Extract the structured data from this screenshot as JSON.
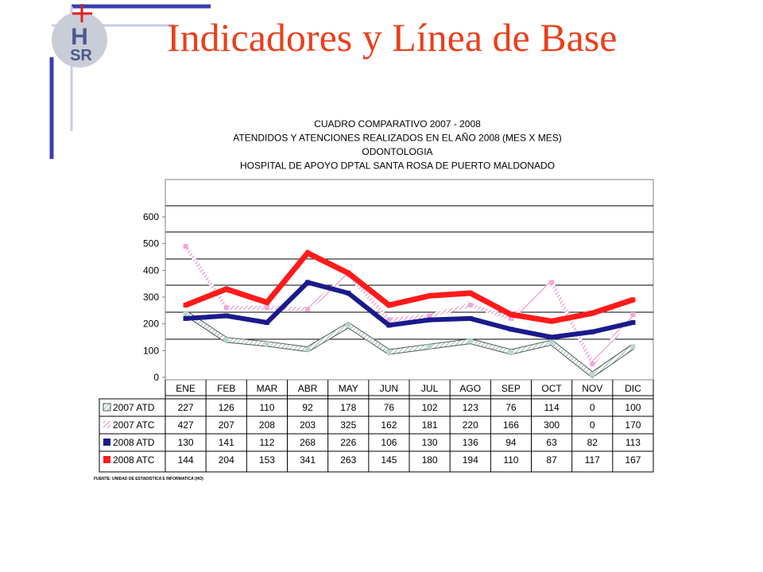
{
  "slide": {
    "title": "Indicadores y Línea de Base",
    "logo_text_top": "H",
    "logo_text_bottom": "SR"
  },
  "colors": {
    "title": "#e8401c",
    "accent_bar": "#3a3fb0",
    "accent_light": "#c8cbe8",
    "logo_cross": "#e02020",
    "atd_2007": "#b7d7d0",
    "atc_2007": "#f0a8d8",
    "atd_2008": "#1a1a8c",
    "atc_2008": "#ff1a1a"
  },
  "chart_data": {
    "type": "line",
    "title_lines": [
      "CUADRO COMPARATIVO 2007 - 2008",
      "ATENDIDOS Y ATENCIONES REALIZADOS EN EL AÑO 2008 (MES X MES)",
      "ODONTOLOGIA",
      "HOSPITAL DE APOYO DPTAL SANTA ROSA DE PUERTO MALDONADO"
    ],
    "categories": [
      "ENE",
      "FEB",
      "MAR",
      "ABR",
      "MAY",
      "JUN",
      "JUL",
      "AGO",
      "SEP",
      "OCT",
      "NOV",
      "DIC"
    ],
    "yticks": [
      0,
      100,
      200,
      300,
      400,
      500,
      600
    ],
    "ylim": [
      0,
      600
    ],
    "series": [
      {
        "name": "2007 ATD",
        "values": [
          227,
          126,
          110,
          92,
          178,
          76,
          102,
          123,
          76,
          114,
          0,
          100
        ],
        "color": "#b7d7d0",
        "style": "hatched-thin"
      },
      {
        "name": "2007 ATC",
        "values": [
          427,
          207,
          208,
          203,
          325,
          162,
          181,
          220,
          166,
          300,
          0,
          170
        ],
        "color": "#f0a8d8",
        "style": "hatched"
      },
      {
        "name": "2008 ATD",
        "values": [
          130,
          141,
          112,
          268,
          226,
          106,
          130,
          136,
          94,
          63,
          82,
          113
        ],
        "color": "#1a1a8c",
        "style": "solid"
      },
      {
        "name": "2008 ATC",
        "values": [
          144,
          204,
          153,
          341,
          263,
          145,
          180,
          194,
          110,
          87,
          117,
          167
        ],
        "color": "#ff1a1a",
        "style": "solid"
      }
    ],
    "plotted_y": [
      [
        240,
        140,
        125,
        105,
        195,
        95,
        115,
        135,
        95,
        130,
        10,
        115
      ],
      [
        490,
        260,
        260,
        255,
        385,
        215,
        230,
        270,
        220,
        355,
        50,
        235
      ],
      [
        220,
        230,
        205,
        355,
        315,
        195,
        215,
        220,
        180,
        150,
        170,
        205
      ],
      [
        270,
        330,
        280,
        465,
        390,
        270,
        305,
        315,
        235,
        210,
        240,
        290
      ]
    ],
    "grid": true,
    "legend": "data-table",
    "source": "FUENTE: UNIDAD DE ESTADISTICA E INFORMATICA (HO)"
  }
}
